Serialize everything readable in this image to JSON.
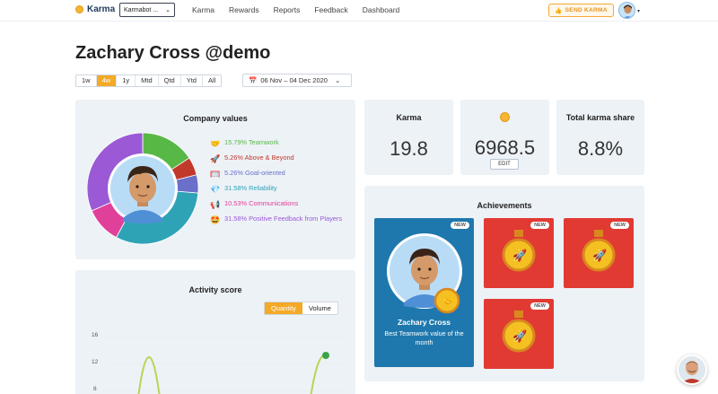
{
  "topbar": {
    "brand": "Karma",
    "team_selector": "Karmabot ...",
    "nav": [
      "Karma",
      "Rewards",
      "Reports",
      "Feedback",
      "Dashboard"
    ],
    "send_karma": "SEND KARMA"
  },
  "header": {
    "title": "Zachary Cross @demo",
    "ranges": [
      "1w",
      "4w",
      "1y",
      "Mtd",
      "Qtd",
      "Ytd",
      "All"
    ],
    "active_range": "4w",
    "date_range": "06 Nov – 04 Dec 2020"
  },
  "company_values": {
    "title": "Company values",
    "items": [
      {
        "label": "15.79% Teamwork",
        "color": "#58b846",
        "icon": "handshake-icon",
        "glyph": "🤝"
      },
      {
        "label": "5.26% Above & Beyond",
        "color": "#c0392b",
        "icon": "rocket-icon",
        "glyph": "🚀"
      },
      {
        "label": "5.26% Goal-oriented",
        "color": "#6a6fc9",
        "icon": "goal-icon",
        "glyph": "🥅"
      },
      {
        "label": "31.58% Reliability",
        "color": "#2fa3b6",
        "icon": "gem-icon",
        "glyph": "💎"
      },
      {
        "label": "10.53% Communications",
        "color": "#e0409a",
        "icon": "megaphone-icon",
        "glyph": "📢"
      },
      {
        "label": "31.58% Positive Feedback from Players",
        "color": "#9b59d6",
        "icon": "star-struck-icon",
        "glyph": "🤩"
      }
    ]
  },
  "stats": {
    "karma_label": "Karma",
    "karma_value": "19.8",
    "balance_value": "6968.5",
    "edit_label": "EDIT",
    "share_label": "Total karma share",
    "share_value": "8.8%"
  },
  "achievements": {
    "title": "Achievements",
    "new_label": "NEW",
    "featured_name": "Zachary Cross",
    "featured_desc": "Best Teamwork value of the month"
  },
  "activity": {
    "title": "Activity score",
    "toggle": [
      "Quantity",
      "Volume"
    ],
    "active_toggle": "Quantity",
    "y_ticks": [
      "16",
      "12",
      "8"
    ]
  },
  "colors": {
    "accent": "#f4a927",
    "achievement_blue": "#1f78ad",
    "achievement_red": "#e13a33",
    "line_green": "#b9d455",
    "point_green": "#3aa34a"
  }
}
